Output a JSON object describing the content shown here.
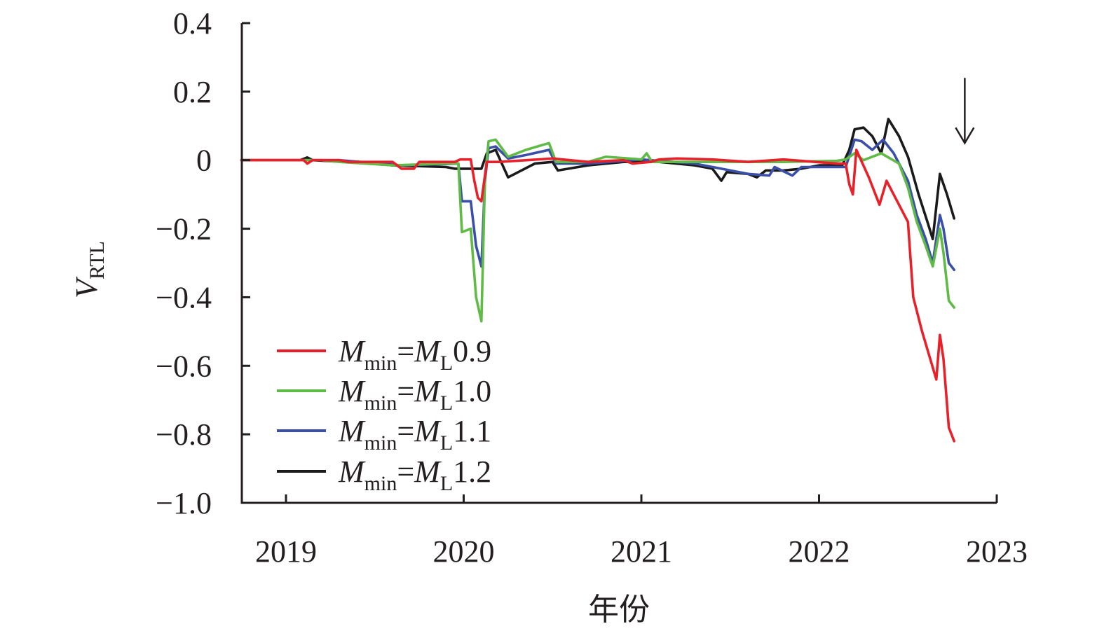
{
  "chart_data": {
    "type": "line",
    "xlabel": "年份",
    "ylabel": {
      "main": "V",
      "sub": "RTL"
    },
    "xlim": [
      2018.75,
      2023.0
    ],
    "ylim": [
      -1.0,
      0.4
    ],
    "x_ticks": [
      2019,
      2020,
      2021,
      2022,
      2023
    ],
    "x_tick_labels": [
      "2019",
      "2020",
      "2021",
      "2022",
      "2023"
    ],
    "y_ticks": [
      0.4,
      0.2,
      0,
      -0.2,
      -0.4,
      -0.6,
      -0.8,
      -1.0
    ],
    "y_tick_labels": [
      "0.4",
      "0.2",
      "0",
      "−0.2",
      "−0.4",
      "−0.6",
      "−0.8",
      "−1.0"
    ],
    "grid": false,
    "legend_position": "bottom-left",
    "annotation": {
      "type": "arrow-down",
      "x": 2022.82,
      "y_from": 0.24,
      "y_to": 0.05
    },
    "series": [
      {
        "name": {
          "main": "M",
          "sub": "min",
          "eq": "=",
          "main2": "M",
          "sub2": "L",
          "value": "0.9"
        },
        "color": "#e8202a",
        "points": [
          [
            2018.75,
            0
          ],
          [
            2019.1,
            0
          ],
          [
            2019.12,
            -0.01
          ],
          [
            2019.15,
            0
          ],
          [
            2019.3,
            0
          ],
          [
            2019.35,
            -0.005
          ],
          [
            2019.6,
            -0.005
          ],
          [
            2019.65,
            -0.025
          ],
          [
            2019.72,
            -0.025
          ],
          [
            2019.75,
            -0.005
          ],
          [
            2019.95,
            -0.005
          ],
          [
            2019.98,
            0.002
          ],
          [
            2020.04,
            0.002
          ],
          [
            2020.06,
            -0.06
          ],
          [
            2020.08,
            -0.11
          ],
          [
            2020.1,
            -0.12
          ],
          [
            2020.13,
            -0.005
          ],
          [
            2020.2,
            -0.005
          ],
          [
            2020.5,
            0.005
          ],
          [
            2020.7,
            -0.005
          ],
          [
            2020.9,
            0
          ],
          [
            2020.95,
            -0.01
          ],
          [
            2021.05,
            -0.005
          ],
          [
            2021.1,
            0.002
          ],
          [
            2021.2,
            0.005
          ],
          [
            2021.4,
            0.002
          ],
          [
            2021.6,
            -0.005
          ],
          [
            2021.8,
            0.002
          ],
          [
            2022.1,
            -0.01
          ],
          [
            2022.15,
            -0.01
          ],
          [
            2022.17,
            -0.07
          ],
          [
            2022.19,
            -0.1
          ],
          [
            2022.21,
            0.03
          ],
          [
            2022.28,
            -0.05
          ],
          [
            2022.34,
            -0.13
          ],
          [
            2022.38,
            -0.06
          ],
          [
            2022.44,
            -0.12
          ],
          [
            2022.5,
            -0.18
          ],
          [
            2022.53,
            -0.4
          ],
          [
            2022.58,
            -0.5
          ],
          [
            2022.66,
            -0.64
          ],
          [
            2022.68,
            -0.51
          ],
          [
            2022.7,
            -0.58
          ],
          [
            2022.73,
            -0.78
          ],
          [
            2022.76,
            -0.82
          ]
        ]
      },
      {
        "name": {
          "main": "M",
          "sub": "min",
          "eq": "=",
          "main2": "M",
          "sub2": "L",
          "value": "1.0"
        },
        "color": "#5fba46",
        "points": [
          [
            2018.75,
            0
          ],
          [
            2019.2,
            0
          ],
          [
            2019.3,
            -0.005
          ],
          [
            2019.6,
            -0.015
          ],
          [
            2019.9,
            -0.01
          ],
          [
            2019.97,
            -0.01
          ],
          [
            2019.99,
            -0.21
          ],
          [
            2020.04,
            -0.2
          ],
          [
            2020.07,
            -0.4
          ],
          [
            2020.1,
            -0.47
          ],
          [
            2020.12,
            -0.05
          ],
          [
            2020.14,
            0.055
          ],
          [
            2020.18,
            0.06
          ],
          [
            2020.25,
            0.01
          ],
          [
            2020.35,
            0.03
          ],
          [
            2020.48,
            0.05
          ],
          [
            2020.52,
            -0.005
          ],
          [
            2020.7,
            -0.005
          ],
          [
            2020.8,
            0.01
          ],
          [
            2021.0,
            0.002
          ],
          [
            2021.03,
            0.02
          ],
          [
            2021.06,
            -0.005
          ],
          [
            2021.3,
            -0.005
          ],
          [
            2021.6,
            -0.005
          ],
          [
            2021.8,
            -0.005
          ],
          [
            2022.1,
            -0.002
          ],
          [
            2022.15,
            0.002
          ],
          [
            2022.2,
            0.02
          ],
          [
            2022.25,
            0.0
          ],
          [
            2022.35,
            0.02
          ],
          [
            2022.45,
            -0.01
          ],
          [
            2022.5,
            -0.08
          ],
          [
            2022.55,
            -0.18
          ],
          [
            2022.6,
            -0.25
          ],
          [
            2022.64,
            -0.31
          ],
          [
            2022.68,
            -0.2
          ],
          [
            2022.7,
            -0.27
          ],
          [
            2022.73,
            -0.41
          ],
          [
            2022.76,
            -0.43
          ]
        ]
      },
      {
        "name": {
          "main": "M",
          "sub": "min",
          "eq": "=",
          "main2": "M",
          "sub2": "L",
          "value": "1.1"
        },
        "color": "#3a4fa8",
        "points": [
          [
            2018.75,
            0
          ],
          [
            2019.3,
            0
          ],
          [
            2019.65,
            -0.015
          ],
          [
            2019.97,
            -0.01
          ],
          [
            2019.99,
            -0.12
          ],
          [
            2020.04,
            -0.12
          ],
          [
            2020.07,
            -0.25
          ],
          [
            2020.1,
            -0.31
          ],
          [
            2020.12,
            -0.06
          ],
          [
            2020.14,
            0.035
          ],
          [
            2020.18,
            0.04
          ],
          [
            2020.25,
            0.005
          ],
          [
            2020.35,
            0.015
          ],
          [
            2020.48,
            0.03
          ],
          [
            2020.52,
            -0.01
          ],
          [
            2020.7,
            -0.01
          ],
          [
            2021.0,
            0.002
          ],
          [
            2021.3,
            -0.01
          ],
          [
            2021.45,
            -0.025
          ],
          [
            2021.6,
            -0.04
          ],
          [
            2021.72,
            -0.045
          ],
          [
            2021.75,
            -0.02
          ],
          [
            2021.85,
            -0.045
          ],
          [
            2021.9,
            -0.02
          ],
          [
            2022.05,
            -0.02
          ],
          [
            2022.15,
            -0.02
          ],
          [
            2022.2,
            0.06
          ],
          [
            2022.24,
            0.055
          ],
          [
            2022.3,
            0.03
          ],
          [
            2022.36,
            0.06
          ],
          [
            2022.42,
            0.02
          ],
          [
            2022.5,
            -0.06
          ],
          [
            2022.55,
            -0.16
          ],
          [
            2022.6,
            -0.23
          ],
          [
            2022.64,
            -0.3
          ],
          [
            2022.68,
            -0.16
          ],
          [
            2022.7,
            -0.2
          ],
          [
            2022.73,
            -0.3
          ],
          [
            2022.76,
            -0.32
          ]
        ]
      },
      {
        "name": {
          "main": "M",
          "sub": "min",
          "eq": "=",
          "main2": "M",
          "sub2": "L",
          "value": "1.2"
        },
        "color": "#1a1a1a",
        "points": [
          [
            2018.75,
            0
          ],
          [
            2019.08,
            0
          ],
          [
            2019.12,
            0.008
          ],
          [
            2019.15,
            0
          ],
          [
            2019.5,
            -0.01
          ],
          [
            2019.6,
            -0.015
          ],
          [
            2019.9,
            -0.02
          ],
          [
            2019.95,
            -0.025
          ],
          [
            2019.99,
            -0.025
          ],
          [
            2020.1,
            -0.025
          ],
          [
            2020.13,
            0.02
          ],
          [
            2020.18,
            0.03
          ],
          [
            2020.25,
            -0.05
          ],
          [
            2020.4,
            -0.01
          ],
          [
            2020.5,
            -0.005
          ],
          [
            2020.53,
            -0.03
          ],
          [
            2020.7,
            -0.015
          ],
          [
            2020.9,
            -0.005
          ],
          [
            2021.1,
            -0.005
          ],
          [
            2021.3,
            -0.015
          ],
          [
            2021.4,
            -0.025
          ],
          [
            2021.45,
            -0.06
          ],
          [
            2021.48,
            -0.035
          ],
          [
            2021.6,
            -0.04
          ],
          [
            2021.65,
            -0.05
          ],
          [
            2021.7,
            -0.03
          ],
          [
            2021.8,
            -0.03
          ],
          [
            2021.9,
            -0.025
          ],
          [
            2022.0,
            -0.015
          ],
          [
            2022.13,
            -0.015
          ],
          [
            2022.17,
            0.03
          ],
          [
            2022.2,
            0.09
          ],
          [
            2022.25,
            0.095
          ],
          [
            2022.3,
            0.07
          ],
          [
            2022.35,
            0.02
          ],
          [
            2022.39,
            0.12
          ],
          [
            2022.45,
            0.07
          ],
          [
            2022.5,
            0.01
          ],
          [
            2022.56,
            -0.1
          ],
          [
            2022.61,
            -0.18
          ],
          [
            2022.64,
            -0.23
          ],
          [
            2022.68,
            -0.04
          ],
          [
            2022.72,
            -0.1
          ],
          [
            2022.76,
            -0.17
          ]
        ]
      }
    ]
  }
}
